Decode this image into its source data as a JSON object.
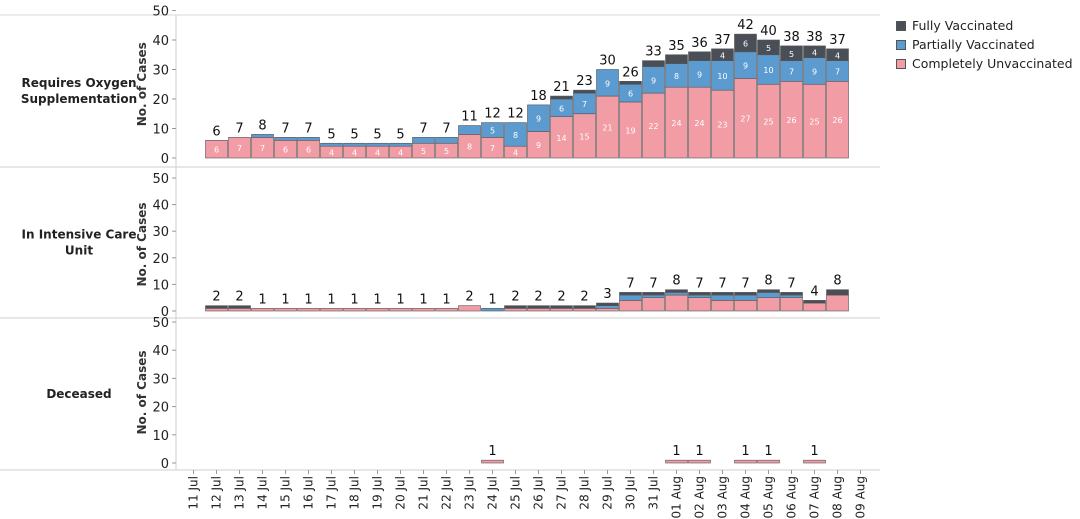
{
  "colors": {
    "fully": "#4a4f57",
    "partially": "#5b9bd0",
    "unvaccinated": "#f29ca6"
  },
  "legend": [
    {
      "label": "Fully Vaccinated",
      "color": "#4a4f57"
    },
    {
      "label": "Partially Vaccinated",
      "color": "#5b9bd0"
    },
    {
      "label": "Completely Unvaccinated",
      "color": "#f29ca6"
    }
  ],
  "chart_data": {
    "type": "bar",
    "stacked": true,
    "ylabel": "No. of Cases",
    "ylim": [
      0,
      50
    ],
    "yticks": [
      0,
      10,
      20,
      30,
      40,
      50
    ],
    "categories": [
      "11 Jul",
      "12 Jul",
      "13 Jul",
      "14 Jul",
      "15 Jul",
      "16 Jul",
      "17 Jul",
      "18 Jul",
      "19 Jul",
      "20 Jul",
      "21 Jul",
      "22 Jul",
      "23 Jul",
      "24 Jul",
      "25 Jul",
      "26 Jul",
      "27 Jul",
      "28 Jul",
      "29 Jul",
      "30 Jul",
      "31 Jul",
      "01 Aug",
      "02 Aug",
      "03 Aug",
      "04 Aug",
      "05 Aug",
      "06 Aug",
      "07 Aug",
      "08 Aug",
      "09 Aug"
    ],
    "panels": [
      {
        "label": "Requires Oxygen Supplementation",
        "series": [
          {
            "name": "Completely Unvaccinated",
            "values": [
              null,
              6,
              7,
              7,
              6,
              6,
              4,
              4,
              4,
              4,
              5,
              5,
              8,
              7,
              4,
              9,
              14,
              15,
              21,
              19,
              22,
              24,
              24,
              23,
              27,
              25,
              26,
              25,
              26,
              null
            ]
          },
          {
            "name": "Partially Vaccinated",
            "values": [
              null,
              0,
              0,
              1,
              1,
              1,
              1,
              1,
              1,
              1,
              2,
              2,
              3,
              5,
              8,
              9,
              6,
              7,
              9,
              6,
              9,
              8,
              9,
              10,
              9,
              10,
              7,
              9,
              7,
              null
            ]
          },
          {
            "name": "Fully Vaccinated",
            "values": [
              null,
              0,
              0,
              0,
              0,
              0,
              0,
              0,
              0,
              0,
              0,
              0,
              0,
              0,
              0,
              0,
              1,
              1,
              0,
              1,
              2,
              3,
              3,
              4,
              6,
              5,
              5,
              4,
              4,
              null
            ]
          }
        ],
        "totals": [
          null,
          6,
          7,
          8,
          7,
          7,
          5,
          5,
          5,
          5,
          7,
          7,
          11,
          12,
          12,
          18,
          21,
          23,
          30,
          26,
          33,
          35,
          36,
          37,
          42,
          40,
          38,
          38,
          37,
          null
        ]
      },
      {
        "label": "In Intensive Care Unit",
        "series": [
          {
            "name": "Completely Unvaccinated",
            "values": [
              null,
              1,
              1,
              1,
              1,
              1,
              1,
              1,
              1,
              1,
              1,
              1,
              2,
              0,
              1,
              1,
              1,
              1,
              1,
              4,
              5,
              6,
              5,
              4,
              4,
              5,
              5,
              3,
              6,
              null
            ]
          },
          {
            "name": "Partially Vaccinated",
            "values": [
              null,
              0,
              0,
              0,
              0,
              0,
              0,
              0,
              0,
              0,
              0,
              0,
              0,
              1,
              0,
              0,
              0,
              0,
              1,
              2,
              1,
              1,
              1,
              2,
              2,
              2,
              1,
              0,
              0,
              null
            ]
          },
          {
            "name": "Fully Vaccinated",
            "values": [
              null,
              1,
              1,
              0,
              0,
              0,
              0,
              0,
              0,
              0,
              0,
              0,
              0,
              0,
              1,
              1,
              1,
              1,
              1,
              1,
              1,
              1,
              1,
              1,
              1,
              1,
              1,
              1,
              2,
              null
            ]
          }
        ],
        "totals": [
          null,
          2,
          2,
          1,
          1,
          1,
          1,
          1,
          1,
          1,
          1,
          1,
          2,
          1,
          2,
          2,
          2,
          2,
          3,
          7,
          7,
          8,
          7,
          7,
          7,
          8,
          7,
          4,
          8,
          null
        ]
      },
      {
        "label": "Deceased",
        "series": [
          {
            "name": "Completely Unvaccinated",
            "values": [
              null,
              null,
              null,
              null,
              null,
              null,
              null,
              null,
              null,
              null,
              null,
              null,
              null,
              1,
              null,
              null,
              null,
              null,
              null,
              null,
              null,
              1,
              1,
              null,
              1,
              1,
              null,
              1,
              null,
              null
            ]
          },
          {
            "name": "Partially Vaccinated",
            "values": [
              null,
              null,
              null,
              null,
              null,
              null,
              null,
              null,
              null,
              null,
              null,
              null,
              null,
              0,
              null,
              null,
              null,
              null,
              null,
              null,
              null,
              0,
              0,
              null,
              0,
              0,
              null,
              0,
              null,
              null
            ]
          },
          {
            "name": "Fully Vaccinated",
            "values": [
              null,
              null,
              null,
              null,
              null,
              null,
              null,
              null,
              null,
              null,
              null,
              null,
              null,
              0,
              null,
              null,
              null,
              null,
              null,
              null,
              null,
              0,
              0,
              null,
              0,
              0,
              null,
              0,
              null,
              null
            ]
          }
        ],
        "totals": [
          null,
          null,
          null,
          null,
          null,
          null,
          null,
          null,
          null,
          null,
          null,
          null,
          null,
          1,
          null,
          null,
          null,
          null,
          null,
          null,
          null,
          1,
          1,
          null,
          1,
          1,
          null,
          1,
          null,
          null
        ]
      }
    ]
  }
}
